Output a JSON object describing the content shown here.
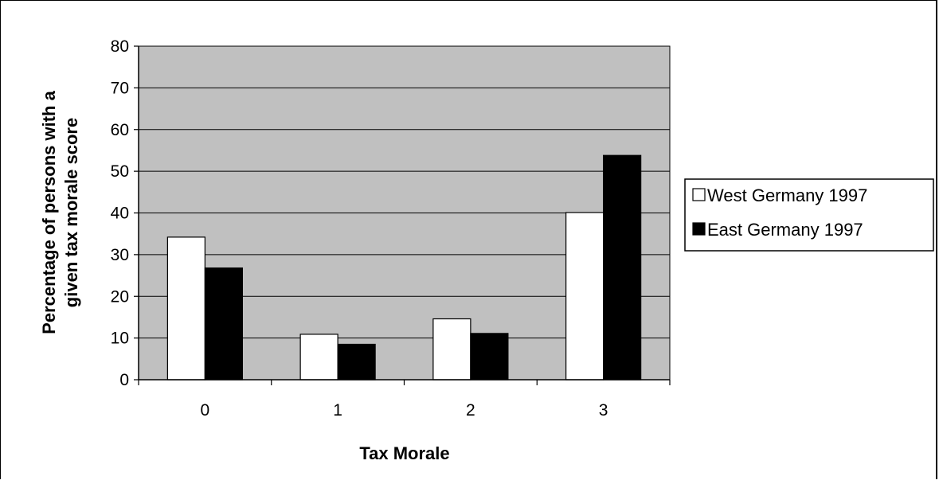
{
  "chart_data": {
    "type": "bar",
    "categories": [
      "0",
      "1",
      "2",
      "3"
    ],
    "series": [
      {
        "name": "West Germany 1997",
        "values": [
          34.2,
          10.9,
          14.6,
          40.1
        ],
        "color": "#ffffff"
      },
      {
        "name": "East Germany 1997",
        "values": [
          26.8,
          8.5,
          11.1,
          53.8
        ],
        "color": "#000000"
      }
    ],
    "xlabel": "Tax Morale",
    "ylabel_lines": [
      "Percentage of persons with a",
      "given tax morale score"
    ],
    "ylim": [
      0,
      80
    ],
    "yticks": [
      "0",
      "10",
      "20",
      "30",
      "40",
      "50",
      "60",
      "70",
      "80"
    ],
    "grid": true,
    "plot_background": "#c0c0c0",
    "legend_position": "right"
  }
}
